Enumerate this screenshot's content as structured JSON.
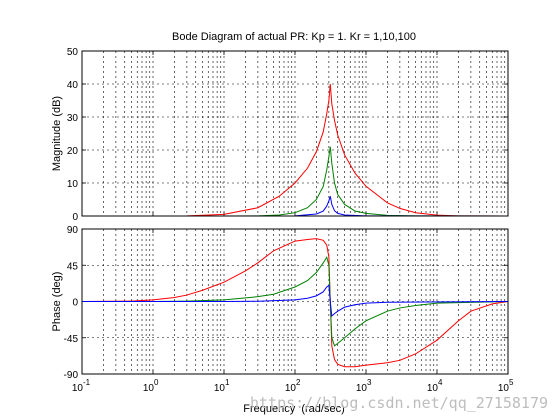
{
  "chart_data": {
    "type": "line",
    "title": "Bode Diagram of actual PR: Kp = 1. Kr = 1,10,100",
    "xlabel": "Frequency  (rad/sec)",
    "xscale": "log",
    "xlim": [
      0.1,
      100000
    ],
    "x_tick_labels": [
      {
        "base": "10",
        "exp": "-1"
      },
      {
        "base": "10",
        "exp": "0"
      },
      {
        "base": "10",
        "exp": "1"
      },
      {
        "base": "10",
        "exp": "2"
      },
      {
        "base": "10",
        "exp": "3"
      },
      {
        "base": "10",
        "exp": "4"
      },
      {
        "base": "10",
        "exp": "5"
      }
    ],
    "grid": true,
    "panels": [
      {
        "ylabel": "Magnitude (dB)",
        "ylim": [
          0,
          50
        ],
        "yticks": [
          "0",
          "10",
          "20",
          "30",
          "40",
          "50"
        ],
        "series": [
          {
            "color": "#ff0000",
            "x": [
              0.1,
              1,
              3,
              10,
              30,
              60,
              100,
              150,
              200,
              250,
              280,
              300,
              314,
              330,
              360,
              400,
              500,
              700,
              1000,
              2000,
              3000,
              5000,
              10000,
              20000,
              30000,
              100000
            ],
            "y": [
              0,
              0,
              0.05,
              0.5,
              2.5,
              6,
              10,
              14.5,
              19.5,
              25.5,
              31,
              35,
              40,
              34,
              29,
              24.5,
              18.5,
              13,
              9,
              4,
              2.3,
              1,
              0.25,
              0.05,
              0.02,
              0
            ]
          },
          {
            "color": "#008000",
            "x": [
              0.1,
              10,
              30,
              60,
              100,
              150,
              200,
              250,
              280,
              300,
              314,
              330,
              360,
              400,
              500,
              700,
              1000,
              2000,
              5000,
              100000
            ],
            "y": [
              0,
              0,
              0.05,
              0.3,
              1,
              2.5,
              5,
              9,
              14,
              18,
              21,
              16,
              10,
              6.5,
              3.5,
              1.5,
              0.8,
              0.2,
              0.02,
              0
            ]
          },
          {
            "color": "#0000ff",
            "x": [
              0.1,
              30,
              100,
              200,
              250,
              280,
              300,
              314,
              330,
              360,
              400,
              500,
              1000,
              100000
            ],
            "y": [
              0,
              0,
              0.05,
              0.6,
              1.5,
              3,
              4.6,
              6,
              3.5,
              1.6,
              0.8,
              0.3,
              0.05,
              0
            ]
          }
        ]
      },
      {
        "ylabel": "Phase (deg)",
        "ylim": [
          -90,
          90
        ],
        "yticks": [
          "90",
          "45",
          "0",
          "-45",
          "-90"
        ],
        "series": [
          {
            "color": "#ff0000",
            "x": [
              0.1,
              0.5,
              1,
              2,
              3,
              5,
              10,
              20,
              30,
              50,
              100,
              150,
              200,
              250,
              280,
              300,
              314,
              330,
              360,
              400,
              500,
              700,
              1000,
              2000,
              3000,
              5000,
              10000,
              20000,
              30000,
              60000,
              100000
            ],
            "y": [
              0,
              0.5,
              2,
              5,
              8,
              14,
              24,
              38,
              48,
              63,
              75,
              77,
              78,
              76,
              70,
              55,
              0,
              -55,
              -72,
              -78,
              -81,
              -81,
              -79,
              -76,
              -73,
              -65,
              -48,
              -24,
              -12,
              -3,
              0
            ]
          },
          {
            "color": "#008000",
            "x": [
              0.1,
              1,
              3,
              10,
              30,
              50,
              100,
              150,
              200,
              250,
              280,
              300,
              314,
              330,
              360,
              400,
              500,
              700,
              1000,
              2000,
              3000,
              5000,
              10000,
              100000
            ],
            "y": [
              0,
              0,
              0.5,
              2,
              6,
              9,
              18,
              26,
              36,
              48,
              55,
              45,
              0,
              -45,
              -55,
              -52,
              -45,
              -34,
              -24,
              -12,
              -8,
              -5,
              -2,
              0
            ]
          },
          {
            "color": "#0000ff",
            "x": [
              0.1,
              10,
              30,
              100,
              150,
              200,
              250,
              280,
              300,
              314,
              330,
              360,
              400,
              500,
              700,
              1000,
              2000,
              100000
            ],
            "y": [
              0,
              0,
              0.3,
              2,
              4,
              7,
              12,
              18,
              20,
              0,
              -18,
              -15,
              -12,
              -7,
              -4,
              -2,
              -1,
              0
            ]
          }
        ]
      }
    ]
  },
  "watermark": "https://blog.csdn.net/qq_27158179"
}
